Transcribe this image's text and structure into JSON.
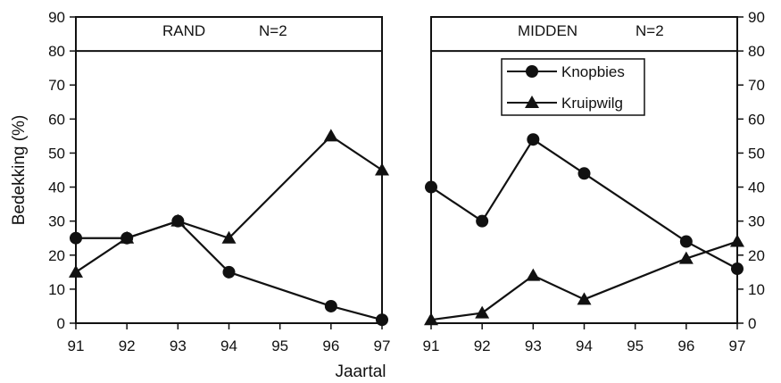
{
  "chart_data": [
    {
      "type": "line",
      "panel": "left",
      "title": "RAND",
      "subtitle": "N=2",
      "ylabel": "Bedekking (%)",
      "xlabel": "Jaartal",
      "ylim": [
        0,
        90
      ],
      "yticks": [
        "0",
        "10",
        "20",
        "30",
        "40",
        "50",
        "60",
        "70",
        "80",
        "90"
      ],
      "xticks": [
        "91",
        "92",
        "93",
        "94",
        "95",
        "96",
        "97"
      ],
      "x": [
        91,
        92,
        93,
        94,
        95,
        96,
        97
      ],
      "series": [
        {
          "name": "Knopbies",
          "marker": "circle",
          "points": [
            [
              91,
              25
            ],
            [
              92,
              25
            ],
            [
              93,
              30
            ],
            [
              94,
              15
            ],
            [
              96,
              5
            ],
            [
              97,
              1
            ]
          ]
        },
        {
          "name": "Kruipwilg",
          "marker": "triangle",
          "points": [
            [
              91,
              15
            ],
            [
              92,
              25
            ],
            [
              93,
              30
            ],
            [
              94,
              25
            ],
            [
              96,
              55
            ],
            [
              97,
              45
            ]
          ]
        }
      ]
    },
    {
      "type": "line",
      "panel": "right",
      "title": "MIDDEN",
      "subtitle": "N=2",
      "ylim": [
        0,
        90
      ],
      "yticks": [
        "0",
        "10",
        "20",
        "30",
        "40",
        "50",
        "60",
        "70",
        "80",
        "90"
      ],
      "xticks": [
        "91",
        "92",
        "93",
        "94",
        "95",
        "96",
        "97"
      ],
      "x": [
        91,
        92,
        93,
        94,
        95,
        96,
        97
      ],
      "legend": {
        "placement": "top-center",
        "entries": [
          "Knopbies",
          "Kruipwilg"
        ]
      },
      "series": [
        {
          "name": "Knopbies",
          "marker": "circle",
          "points": [
            [
              91,
              40
            ],
            [
              92,
              30
            ],
            [
              93,
              54
            ],
            [
              94,
              44
            ],
            [
              96,
              24
            ],
            [
              97,
              16
            ]
          ]
        },
        {
          "name": "Kruipwilg",
          "marker": "triangle",
          "points": [
            [
              91,
              1
            ],
            [
              92,
              3
            ],
            [
              93,
              14
            ],
            [
              94,
              7
            ],
            [
              96,
              19
            ],
            [
              97,
              24
            ]
          ]
        }
      ]
    }
  ]
}
